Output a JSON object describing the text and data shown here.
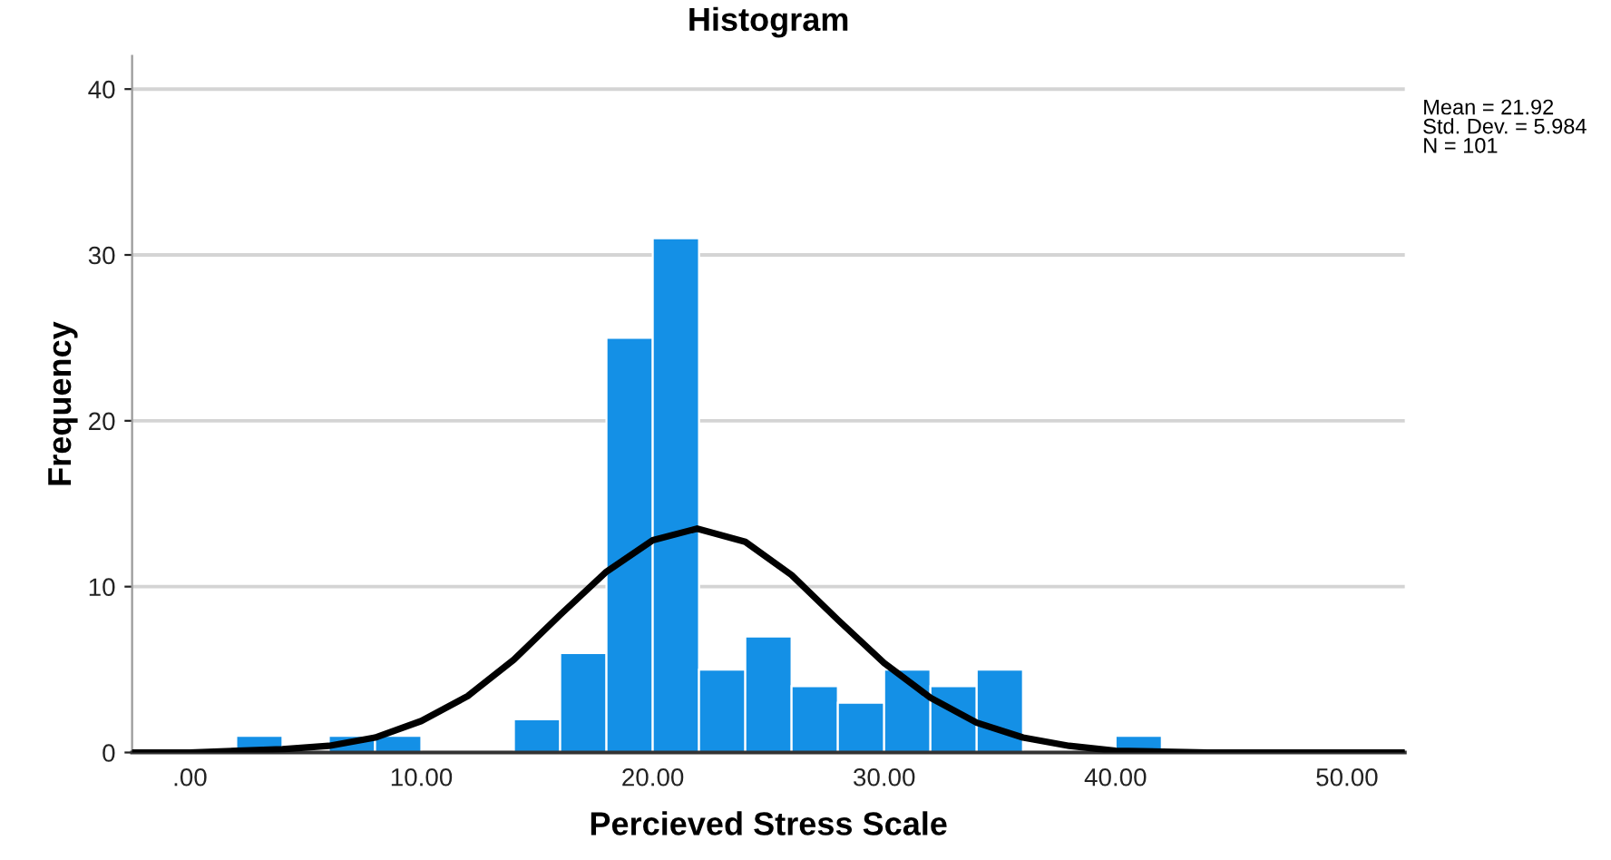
{
  "chart_data": {
    "type": "histogram",
    "title": "Histogram",
    "xlabel": "Percieved Stress Scale",
    "ylabel": "Frequency",
    "series": [
      {
        "color": "#1490e6",
        "bins": [
          2,
          4,
          6,
          8,
          10,
          12,
          14,
          16,
          18,
          20,
          22,
          24,
          26,
          28,
          30,
          32,
          34,
          36,
          38,
          40,
          42
        ],
        "values": [
          1,
          0,
          1,
          1,
          0,
          0,
          2,
          6,
          25,
          31,
          5,
          7,
          4,
          3,
          5,
          4,
          5,
          0,
          0,
          1
        ]
      },
      {
        "type": "line",
        "color": "#000000",
        "x": [
          -2.5,
          0,
          4,
          6,
          8,
          10,
          12,
          14,
          16,
          18,
          20,
          21.92,
          24,
          26,
          28,
          30,
          32,
          34,
          36,
          38,
          40,
          44,
          52.5
        ],
        "values": [
          0,
          0,
          0.2,
          0.4,
          0.9,
          1.9,
          3.4,
          5.6,
          8.3,
          10.9,
          12.8,
          13.5,
          12.7,
          10.7,
          8.0,
          5.4,
          3.3,
          1.8,
          0.9,
          0.4,
          0.1,
          0,
          0
        ]
      }
    ],
    "xlim": [
      -2.5,
      52.5
    ],
    "ylim": [
      0,
      42
    ],
    "xticks": [
      {
        "value": 0,
        "label": ".00"
      },
      {
        "value": 10,
        "label": "10.00"
      },
      {
        "value": 20,
        "label": "20.00"
      },
      {
        "value": 30,
        "label": "30.00"
      },
      {
        "value": 40,
        "label": "40.00"
      },
      {
        "value": 50,
        "label": "50.00"
      }
    ],
    "yticks": [
      0,
      10,
      20,
      30,
      40
    ],
    "grid": "y",
    "annotations": [
      "Mean = 21.92\nStd. Dev. = 5.984\nN = 101"
    ]
  }
}
